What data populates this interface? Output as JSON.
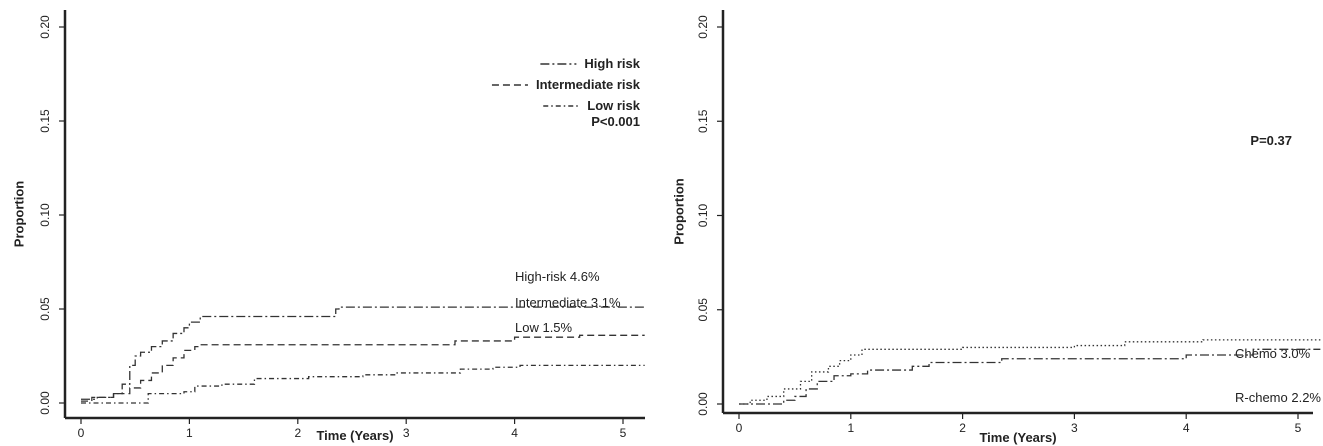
{
  "chart_data": [
    {
      "type": "line",
      "step": true,
      "xlabel": "Time (Years)",
      "ylabel": "Proportion",
      "xlim": [
        0,
        5.2
      ],
      "ylim": [
        0,
        0.2
      ],
      "xticks": [
        "0",
        "1",
        "2",
        "3",
        "4",
        "5"
      ],
      "yticks": [
        "0.00",
        "0.05",
        "0.10",
        "0.15",
        "0.20"
      ],
      "grid": false,
      "legend": {
        "position": "top-right",
        "entries": [
          {
            "label": "High risk",
            "dash": "dash-dot"
          },
          {
            "label": "Intermediate risk",
            "dash": "dashed"
          },
          {
            "label": "Low risk",
            "dash": "dot-dash-fine"
          }
        ]
      },
      "pvalue": "P<0.001",
      "series": [
        {
          "name": "High risk",
          "annotation": "High-risk 4.6%",
          "dash": "dash-dot",
          "points": [
            [
              0,
              0.002
            ],
            [
              0.15,
              0.003
            ],
            [
              0.3,
              0.005
            ],
            [
              0.38,
              0.01
            ],
            [
              0.45,
              0.02
            ],
            [
              0.5,
              0.025
            ],
            [
              0.55,
              0.027
            ],
            [
              0.65,
              0.03
            ],
            [
              0.75,
              0.033
            ],
            [
              0.85,
              0.037
            ],
            [
              0.95,
              0.04
            ],
            [
              1.0,
              0.043
            ],
            [
              1.1,
              0.046
            ],
            [
              2.35,
              0.05
            ],
            [
              2.38,
              0.051
            ],
            [
              5.2,
              0.051
            ]
          ]
        },
        {
          "name": "Intermediate risk",
          "annotation": "Intermediate 3.1%",
          "dash": "dashed",
          "points": [
            [
              0,
              0.001
            ],
            [
              0.1,
              0.003
            ],
            [
              0.3,
              0.005
            ],
            [
              0.45,
              0.008
            ],
            [
              0.55,
              0.012
            ],
            [
              0.65,
              0.016
            ],
            [
              0.75,
              0.02
            ],
            [
              0.85,
              0.024
            ],
            [
              0.95,
              0.028
            ],
            [
              1.05,
              0.03
            ],
            [
              1.1,
              0.031
            ],
            [
              3.45,
              0.033
            ],
            [
              4.0,
              0.035
            ],
            [
              4.6,
              0.036
            ],
            [
              5.2,
              0.036
            ]
          ]
        },
        {
          "name": "Low risk",
          "annotation": "Low 1.5%",
          "dash": "dot-dash-fine",
          "points": [
            [
              0,
              0.0
            ],
            [
              0.6,
              0.0
            ],
            [
              0.62,
              0.005
            ],
            [
              0.95,
              0.006
            ],
            [
              1.05,
              0.009
            ],
            [
              1.3,
              0.01
            ],
            [
              1.6,
              0.013
            ],
            [
              2.1,
              0.014
            ],
            [
              2.6,
              0.015
            ],
            [
              2.9,
              0.016
            ],
            [
              3.5,
              0.018
            ],
            [
              3.8,
              0.019
            ],
            [
              4.05,
              0.02
            ],
            [
              5.2,
              0.02
            ]
          ]
        }
      ]
    },
    {
      "type": "line",
      "step": true,
      "xlabel": "Time (Years)",
      "ylabel": "Proportion",
      "xlim": [
        0,
        5.2
      ],
      "ylim": [
        0,
        0.2
      ],
      "xticks": [
        "0",
        "1",
        "2",
        "3",
        "4",
        "5"
      ],
      "yticks": [
        "0.00",
        "0.05",
        "0.10",
        "0.15",
        "0.20"
      ],
      "grid": false,
      "pvalue": "P=0.37",
      "series": [
        {
          "annotation": "Chemo 3.0%",
          "dash": "dotted",
          "points": [
            [
              0,
              0.0
            ],
            [
              0.1,
              0.002
            ],
            [
              0.25,
              0.004
            ],
            [
              0.4,
              0.008
            ],
            [
              0.55,
              0.012
            ],
            [
              0.65,
              0.017
            ],
            [
              0.8,
              0.02
            ],
            [
              0.9,
              0.023
            ],
            [
              1.0,
              0.026
            ],
            [
              1.1,
              0.029
            ],
            [
              2.0,
              0.03
            ],
            [
              3.0,
              0.031
            ],
            [
              3.45,
              0.033
            ],
            [
              4.15,
              0.034
            ],
            [
              5.2,
              0.034
            ]
          ]
        },
        {
          "annotation": "R-chemo 2.2%",
          "dash": "dash-dot",
          "points": [
            [
              0,
              0.0
            ],
            [
              0.2,
              0.0
            ],
            [
              0.4,
              0.002
            ],
            [
              0.5,
              0.004
            ],
            [
              0.6,
              0.008
            ],
            [
              0.7,
              0.012
            ],
            [
              0.85,
              0.015
            ],
            [
              1.0,
              0.016
            ],
            [
              1.15,
              0.018
            ],
            [
              1.55,
              0.02
            ],
            [
              1.7,
              0.022
            ],
            [
              2.35,
              0.024
            ],
            [
              3.0,
              0.024
            ],
            [
              4.0,
              0.026
            ],
            [
              4.6,
              0.029
            ],
            [
              5.2,
              0.029
            ]
          ]
        }
      ]
    }
  ]
}
